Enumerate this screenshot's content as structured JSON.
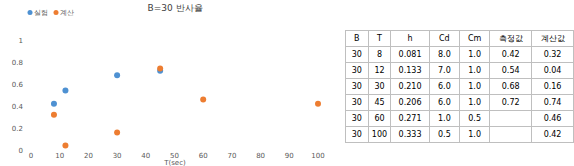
{
  "chart_data": {
    "type": "scatter",
    "title": "B=30 반사율",
    "xlabel": "T(sec)",
    "series": [
      {
        "name": "실험",
        "color": "#4e91d2",
        "x": [
          8,
          12,
          30,
          45
        ],
        "values": [
          0.42,
          0.54,
          0.68,
          0.72
        ]
      },
      {
        "name": "계산",
        "color": "#ed7d31",
        "x": [
          8,
          12,
          30,
          45,
          60,
          100
        ],
        "values": [
          0.32,
          0.04,
          0.16,
          0.74,
          0.46,
          0.42
        ]
      }
    ],
    "xlim": [
      0,
      100
    ],
    "xticks": [
      0,
      10,
      20,
      30,
      40,
      50,
      60,
      70,
      80,
      90,
      100
    ],
    "ylim": [
      0,
      1
    ],
    "yticks": [
      0,
      0.2,
      0.4,
      0.6,
      0.8,
      1
    ],
    "grid": false,
    "legend": "upper left"
  },
  "table": {
    "header": [
      "B",
      "T",
      "h",
      "Cd",
      "Cm",
      "측정값",
      "계산값"
    ],
    "rows": [
      [
        "30",
        "8",
        "0.081",
        "8.0",
        "1.0",
        "0.42",
        "0.32"
      ],
      [
        "30",
        "12",
        "0.133",
        "7.0",
        "1.0",
        "0.54",
        "0.04"
      ],
      [
        "30",
        "30",
        "0.210",
        "6.0",
        "1.0",
        "0.68",
        "0.16"
      ],
      [
        "30",
        "45",
        "0.206",
        "6.0",
        "1.0",
        "0.72",
        "0.74"
      ],
      [
        "30",
        "60",
        "0.271",
        "1.0",
        "0.5",
        null,
        "0.46"
      ],
      [
        "30",
        "100",
        "0.333",
        "0.5",
        "1.0",
        null,
        "0.42"
      ]
    ]
  }
}
